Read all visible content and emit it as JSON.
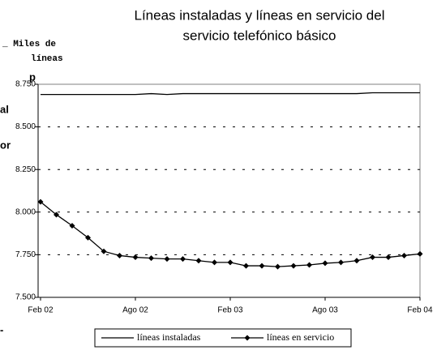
{
  "chart_data": {
    "type": "line",
    "title": [
      "Líneas instaladas y líneas en servicio del",
      "servicio telefónico básico"
    ],
    "y_label": [
      "Miles de",
      "líneas"
    ],
    "cropped_text": [
      "p",
      "al",
      "or",
      "-"
    ],
    "categories": [
      "Feb 02",
      null,
      null,
      null,
      null,
      null,
      "Ago 02",
      null,
      null,
      null,
      null,
      null,
      "Feb 03",
      null,
      null,
      null,
      null,
      null,
      "Ago 03",
      null,
      null,
      null,
      null,
      null,
      "Feb 04"
    ],
    "series": [
      {
        "name": "líneas instaladas",
        "color": "#000000",
        "marker": "none",
        "values": [
          8690,
          8690,
          8690,
          8690,
          8690,
          8690,
          8690,
          8695,
          8690,
          8695,
          8695,
          8695,
          8695,
          8695,
          8695,
          8695,
          8695,
          8695,
          8695,
          8695,
          8695,
          8700,
          8700,
          8700,
          8700
        ]
      },
      {
        "name": "líneas en servicio",
        "color": "#000000",
        "marker": "diamond",
        "values": [
          8060,
          7985,
          7920,
          7850,
          7770,
          7745,
          7735,
          7730,
          7725,
          7725,
          7715,
          7705,
          7705,
          7685,
          7685,
          7680,
          7685,
          7690,
          7700,
          7705,
          7715,
          7735,
          7735,
          7745,
          7755
        ]
      }
    ],
    "ylim": [
      7500,
      8750
    ],
    "yticks": [
      {
        "value": 7500,
        "label": "7.500"
      },
      {
        "value": 7750,
        "label": "7.750"
      },
      {
        "value": 8000,
        "label": "8.000"
      },
      {
        "value": 8250,
        "label": "8.250"
      },
      {
        "value": 8500,
        "label": "8.500"
      },
      {
        "value": 8750,
        "label": "8.750"
      }
    ],
    "grid": true,
    "legend": "bottom"
  }
}
